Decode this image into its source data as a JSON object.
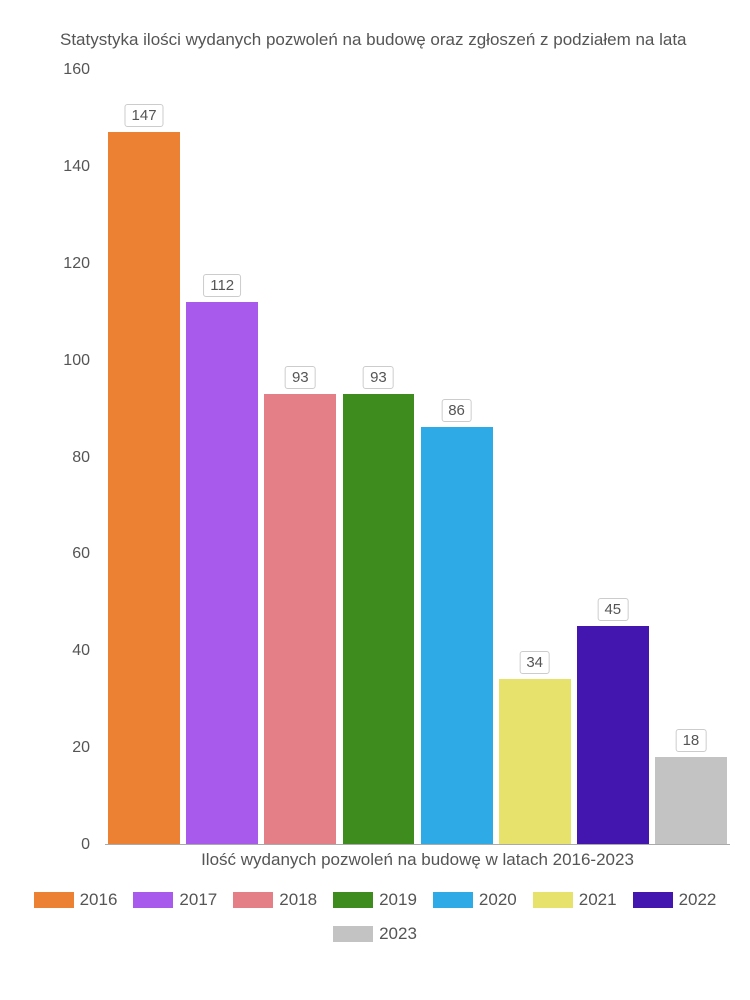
{
  "chart": {
    "type": "bar",
    "title": "Statystyka ilości wydanych pozwoleń na budowę oraz zgłoszeń z podziałem na lata",
    "title_fontsize": 17,
    "title_color": "#555555",
    "xlabel": "Ilość wydanych pozwoleń na budowę w latach 2016-2023",
    "label_fontsize": 17,
    "label_color": "#555555",
    "ylim": [
      0,
      160
    ],
    "ytick_step": 20,
    "yticks": [
      0,
      20,
      40,
      60,
      80,
      100,
      120,
      140,
      160
    ],
    "tick_fontsize": 16,
    "tick_color": "#555555",
    "background_color": "#ffffff",
    "axis_color": "#aaaaaa",
    "bar_width_ratio": 0.92,
    "bar_label_bg": "#ffffff",
    "bar_label_border": "#cccccc",
    "series": [
      {
        "year": "2016",
        "value": 147,
        "color": "#ec8033"
      },
      {
        "year": "2017",
        "value": 112,
        "color": "#a85aec"
      },
      {
        "year": "2018",
        "value": 93,
        "color": "#e47e87"
      },
      {
        "year": "2019",
        "value": 93,
        "color": "#3e8c1e"
      },
      {
        "year": "2020",
        "value": 86,
        "color": "#2eaae6"
      },
      {
        "year": "2021",
        "value": 34,
        "color": "#e7e26b"
      },
      {
        "year": "2022",
        "value": 45,
        "color": "#4316b0"
      },
      {
        "year": "2023",
        "value": 18,
        "color": "#c3c3c3"
      }
    ],
    "legend_swatch_width": 40,
    "legend_swatch_height": 16
  }
}
